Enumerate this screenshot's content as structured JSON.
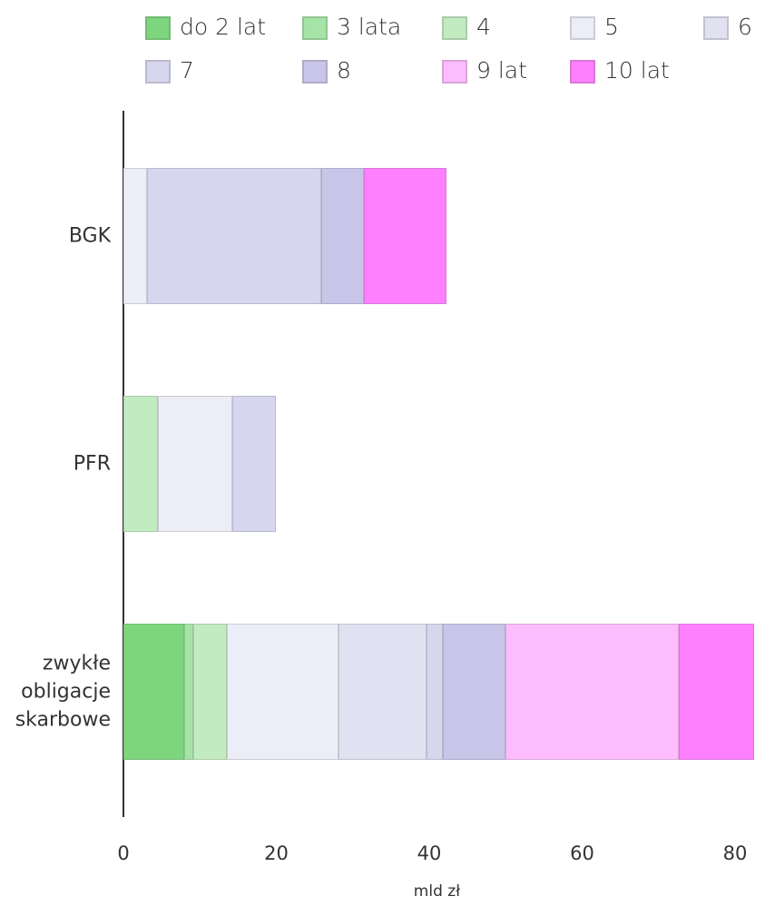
{
  "chart_data": {
    "type": "stacked_barh",
    "categories": [
      "BGK",
      "PFR",
      "zwykłe obligacje skarbowe"
    ],
    "series": [
      {
        "name": "do 2 lat",
        "color": "#7dd67d",
        "values": [
          0,
          0,
          8.0
        ]
      },
      {
        "name": "3 lata",
        "color": "#a6e3a6",
        "values": [
          0,
          0,
          1.1
        ]
      },
      {
        "name": "4",
        "color": "#c2ebc2",
        "values": [
          0,
          4.5,
          4.4
        ]
      },
      {
        "name": "5",
        "color": "#ededf8",
        "values": [
          3.1,
          9.8,
          14.6
        ]
      },
      {
        "name": "6",
        "color": "#e1e1f2",
        "values": [
          0,
          0,
          11.6
        ]
      },
      {
        "name": "7",
        "color": "#d6d6ee",
        "values": [
          22.8,
          5.6,
          2.1
        ]
      },
      {
        "name": "8",
        "color": "#c9c5e9",
        "values": [
          5.5,
          0,
          8.2
        ]
      },
      {
        "name": "9 lat",
        "color": "#fdbcfd",
        "values": [
          0,
          0,
          22.7
        ]
      },
      {
        "name": "10 lat",
        "color": "#ff80ff",
        "values": [
          10.8,
          0,
          9.8
        ]
      }
    ],
    "xlim": [
      0,
      82
    ],
    "xticks": [
      0,
      20,
      40,
      60,
      80
    ],
    "xlabel": "mld zł"
  }
}
